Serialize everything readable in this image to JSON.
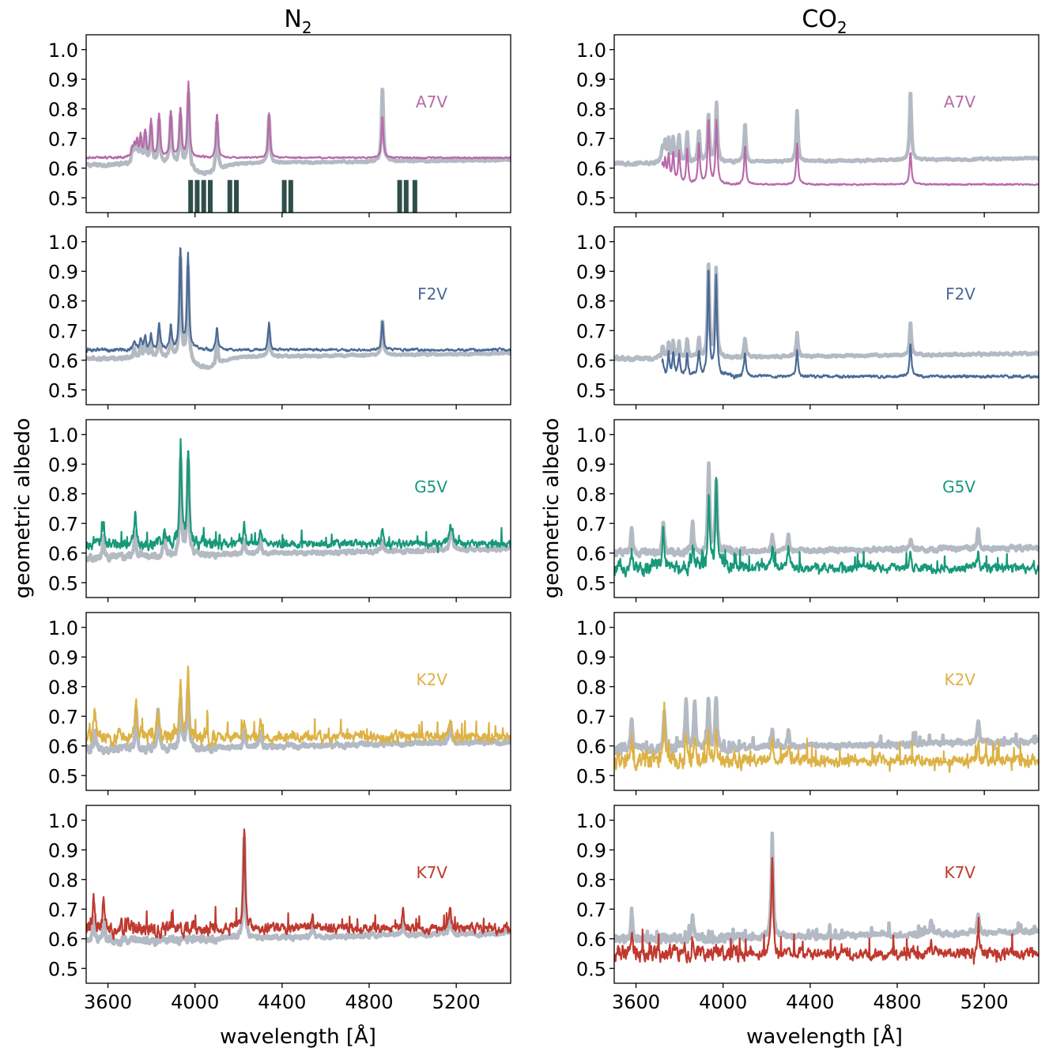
{
  "chart_data": {
    "type": "line",
    "xlabel": "wavelength [Å]",
    "ylabel": "geometric albedo",
    "xlim": [
      3500,
      5450
    ],
    "ylim": [
      0.45,
      1.05
    ],
    "xticks": [
      3600,
      4000,
      4400,
      4800,
      5200
    ],
    "yticks": [
      0.5,
      0.6,
      0.7,
      0.8,
      0.9,
      1.0
    ],
    "grid": false,
    "reference_color": "#b4bac4",
    "columns": [
      {
        "title_main": "N",
        "title_sub": "2",
        "panels": [
          {
            "label": "A7V",
            "color": "#b86aaa",
            "gray_base": 0.61,
            "color_base": 0.635,
            "noise_color": 0.004,
            "noise_gray": 0.006,
            "gray_dip": true,
            "color_dip": false,
            "peaks": [
              {
                "x": 3711,
                "h": 0.04,
                "c": 0.03
              },
              {
                "x": 3722,
                "h": 0.05,
                "c": 0.04
              },
              {
                "x": 3734,
                "h": 0.06,
                "c": 0.05
              },
              {
                "x": 3750,
                "h": 0.08,
                "c": 0.07
              },
              {
                "x": 3771,
                "h": 0.1,
                "c": 0.09
              },
              {
                "x": 3798,
                "h": 0.13,
                "c": 0.12
              },
              {
                "x": 3835,
                "h": 0.15,
                "c": 0.15
              },
              {
                "x": 3889,
                "h": 0.16,
                "c": 0.16
              },
              {
                "x": 3933,
                "h": 0.17,
                "c": 0.17
              },
              {
                "x": 3970,
                "h": 0.25,
                "c": 0.25
              },
              {
                "x": 4101,
                "h": 0.17,
                "c": 0.15
              },
              {
                "x": 4340,
                "h": 0.16,
                "c": 0.15
              },
              {
                "x": 4861,
                "h": 0.25,
                "c": 0.14
              }
            ],
            "markers": [
              3980,
              4010,
              4040,
              4070,
              4160,
              4190,
              4410,
              4440,
              4940,
              4970,
              5010
            ]
          },
          {
            "label": "F2V",
            "color": "#4a6a96",
            "gray_base": 0.605,
            "color_base": 0.635,
            "noise_color": 0.007,
            "noise_gray": 0.006,
            "gray_dip": true,
            "color_dip": false,
            "peaks": [
              {
                "x": 3722,
                "h": 0.03,
                "c": 0.03
              },
              {
                "x": 3750,
                "h": 0.04,
                "c": 0.04
              },
              {
                "x": 3771,
                "h": 0.05,
                "c": 0.05
              },
              {
                "x": 3798,
                "h": 0.05,
                "c": 0.05
              },
              {
                "x": 3835,
                "h": 0.09,
                "c": 0.09
              },
              {
                "x": 3889,
                "h": 0.08,
                "c": 0.08
              },
              {
                "x": 3933,
                "h": 0.35,
                "c": 0.35
              },
              {
                "x": 3968,
                "h": 0.32,
                "c": 0.32
              },
              {
                "x": 4101,
                "h": 0.08,
                "c": 0.08
              },
              {
                "x": 4340,
                "h": 0.09,
                "c": 0.09
              },
              {
                "x": 4861,
                "h": 0.12,
                "c": 0.1
              }
            ]
          },
          {
            "label": "G5V",
            "color": "#17997a",
            "gray_base": 0.585,
            "color_base": 0.63,
            "noise_color": 0.022,
            "noise_gray": 0.012,
            "gray_dip": false,
            "color_dip": false,
            "peaks": [
              {
                "x": 3934,
                "h": 0.32,
                "c": 0.32
              },
              {
                "x": 3969,
                "h": 0.33,
                "c": 0.33
              },
              {
                "x": 3725,
                "h": 0.09,
                "c": 0.1
              },
              {
                "x": 3580,
                "h": 0.07,
                "c": 0.08
              },
              {
                "x": 3860,
                "h": 0.08,
                "c": 0.06
              },
              {
                "x": 4226,
                "h": 0.05,
                "c": 0.06
              },
              {
                "x": 4300,
                "h": 0.06,
                "c": 0.06
              },
              {
                "x": 4861,
                "h": 0.04,
                "c": 0.05
              },
              {
                "x": 5172,
                "h": 0.05,
                "c": 0.05
              },
              {
                "x": 5183,
                "h": 0.05,
                "c": 0.05
              }
            ]
          },
          {
            "label": "K2V",
            "color": "#ddb245",
            "gray_base": 0.585,
            "color_base": 0.63,
            "noise_color": 0.03,
            "noise_gray": 0.014,
            "gray_dip": false,
            "color_dip": false,
            "peaks": [
              {
                "x": 3933,
                "h": 0.17,
                "c": 0.17
              },
              {
                "x": 3968,
                "h": 0.21,
                "c": 0.21
              },
              {
                "x": 3730,
                "h": 0.13,
                "c": 0.12
              },
              {
                "x": 3830,
                "h": 0.14,
                "c": 0.08
              },
              {
                "x": 3540,
                "h": 0.08,
                "c": 0.1
              },
              {
                "x": 4226,
                "h": 0.05,
                "c": 0.05
              },
              {
                "x": 4300,
                "h": 0.05,
                "c": 0.05
              },
              {
                "x": 5172,
                "h": 0.06,
                "c": 0.06
              }
            ]
          },
          {
            "label": "K7V",
            "color": "#c0392f",
            "gray_base": 0.59,
            "color_base": 0.635,
            "noise_color": 0.028,
            "noise_gray": 0.014,
            "gray_dip": false,
            "color_dip": false,
            "peaks": [
              {
                "x": 4226,
                "h": 0.34,
                "c": 0.34
              },
              {
                "x": 3535,
                "h": 0.08,
                "c": 0.1
              },
              {
                "x": 3580,
                "h": 0.08,
                "c": 0.1
              },
              {
                "x": 4540,
                "h": 0.05,
                "c": 0.06
              },
              {
                "x": 4955,
                "h": 0.05,
                "c": 0.06
              },
              {
                "x": 5172,
                "h": 0.06,
                "c": 0.07
              }
            ]
          }
        ]
      },
      {
        "title_main": "CO",
        "title_sub": "2",
        "panels": [
          {
            "label": "A7V",
            "color": "#b86aaa",
            "gray_base": 0.615,
            "color_base": 0.545,
            "noise_color": 0.004,
            "noise_gray": 0.006,
            "gray_dip": false,
            "color_dip": false,
            "cutoff": 3720,
            "peaks": [
              {
                "x": 3722,
                "h": 0.05,
                "c": 0.06
              },
              {
                "x": 3734,
                "h": 0.06,
                "c": 0.07
              },
              {
                "x": 3750,
                "h": 0.07,
                "c": 0.09
              },
              {
                "x": 3771,
                "h": 0.08,
                "c": 0.1
              },
              {
                "x": 3798,
                "h": 0.09,
                "c": 0.11
              },
              {
                "x": 3835,
                "h": 0.1,
                "c": 0.12
              },
              {
                "x": 3889,
                "h": 0.11,
                "c": 0.14
              },
              {
                "x": 3933,
                "h": 0.16,
                "c": 0.22
              },
              {
                "x": 3970,
                "h": 0.2,
                "c": 0.21
              },
              {
                "x": 4101,
                "h": 0.13,
                "c": 0.13
              },
              {
                "x": 4340,
                "h": 0.17,
                "c": 0.14
              },
              {
                "x": 4861,
                "h": 0.23,
                "c": 0.11
              }
            ]
          },
          {
            "label": "F2V",
            "color": "#4a6a96",
            "gray_base": 0.605,
            "color_base": 0.545,
            "noise_color": 0.008,
            "noise_gray": 0.007,
            "gray_dip": false,
            "color_dip": false,
            "cutoff": 3720,
            "peaks": [
              {
                "x": 3722,
                "h": 0.04,
                "c": 0.06
              },
              {
                "x": 3750,
                "h": 0.05,
                "c": 0.07
              },
              {
                "x": 3771,
                "h": 0.05,
                "c": 0.07
              },
              {
                "x": 3798,
                "h": 0.05,
                "c": 0.07
              },
              {
                "x": 3835,
                "h": 0.06,
                "c": 0.08
              },
              {
                "x": 3889,
                "h": 0.06,
                "c": 0.08
              },
              {
                "x": 3933,
                "h": 0.32,
                "c": 0.36
              },
              {
                "x": 3968,
                "h": 0.3,
                "c": 0.34
              },
              {
                "x": 4101,
                "h": 0.06,
                "c": 0.08
              },
              {
                "x": 4340,
                "h": 0.08,
                "c": 0.09
              },
              {
                "x": 4861,
                "h": 0.11,
                "c": 0.11
              }
            ]
          },
          {
            "label": "G5V",
            "color": "#17997a",
            "gray_base": 0.6,
            "color_base": 0.55,
            "noise_color": 0.026,
            "noise_gray": 0.014,
            "gray_dip": false,
            "color_dip": false,
            "peaks": [
              {
                "x": 3934,
                "h": 0.3,
                "c": 0.25
              },
              {
                "x": 3969,
                "h": 0.24,
                "c": 0.29
              },
              {
                "x": 3725,
                "h": 0.1,
                "c": 0.13
              },
              {
                "x": 3580,
                "h": 0.08,
                "c": 0.06
              },
              {
                "x": 3860,
                "h": 0.1,
                "c": 0.06
              },
              {
                "x": 4226,
                "h": 0.05,
                "c": 0.07
              },
              {
                "x": 4300,
                "h": 0.06,
                "c": 0.07
              },
              {
                "x": 4861,
                "h": 0.04,
                "c": 0.05
              },
              {
                "x": 5172,
                "h": 0.07,
                "c": 0.05
              }
            ]
          },
          {
            "label": "K2V",
            "color": "#ddb245",
            "gray_base": 0.585,
            "color_base": 0.55,
            "noise_color": 0.032,
            "noise_gray": 0.016,
            "gray_dip": false,
            "color_dip": false,
            "peaks": [
              {
                "x": 3933,
                "h": 0.16,
                "c": 0.08
              },
              {
                "x": 3968,
                "h": 0.18,
                "c": 0.1
              },
              {
                "x": 3730,
                "h": 0.14,
                "c": 0.16
              },
              {
                "x": 3830,
                "h": 0.16,
                "c": 0.08
              },
              {
                "x": 3870,
                "h": 0.15,
                "c": 0.06
              },
              {
                "x": 3580,
                "h": 0.12,
                "c": 0.08
              },
              {
                "x": 4226,
                "h": 0.06,
                "c": 0.07
              },
              {
                "x": 4300,
                "h": 0.05,
                "c": 0.06
              },
              {
                "x": 5172,
                "h": 0.08,
                "c": 0.07
              }
            ]
          },
          {
            "label": "K7V",
            "color": "#c0392f",
            "gray_base": 0.595,
            "color_base": 0.55,
            "noise_color": 0.03,
            "noise_gray": 0.016,
            "gray_dip": false,
            "color_dip": false,
            "peaks": [
              {
                "x": 4226,
                "h": 0.33,
                "c": 0.31
              },
              {
                "x": 3580,
                "h": 0.1,
                "c": 0.05
              },
              {
                "x": 3860,
                "h": 0.07,
                "c": 0.05
              },
              {
                "x": 4955,
                "h": 0.05,
                "c": 0.05
              },
              {
                "x": 5172,
                "h": 0.07,
                "c": 0.07
              }
            ]
          }
        ]
      }
    ]
  }
}
